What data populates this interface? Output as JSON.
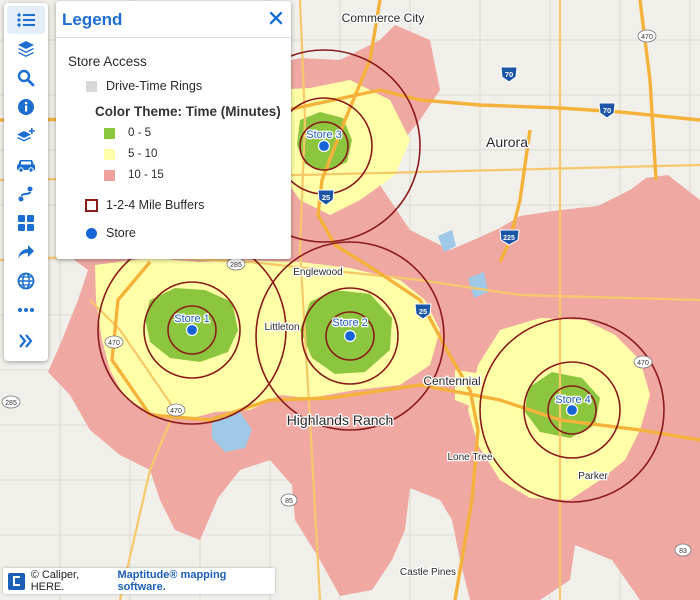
{
  "map": {
    "city_labels": [
      {
        "id": "commerce-city",
        "text": "Commerce City"
      },
      {
        "id": "aurora",
        "text": "Aurora"
      },
      {
        "id": "englewood",
        "text": "Englewood"
      },
      {
        "id": "littleton",
        "text": "Littleton"
      },
      {
        "id": "centennial",
        "text": "Centennial"
      },
      {
        "id": "highlands-ranch",
        "text": "Highlands Ranch"
      },
      {
        "id": "lone-tree",
        "text": "Lone Tree"
      },
      {
        "id": "parker",
        "text": "Parker"
      },
      {
        "id": "castle-pines",
        "text": "Castle Pines"
      }
    ],
    "highway_shields": [
      {
        "id": "i70-a",
        "text": "70",
        "kind": "interstate"
      },
      {
        "id": "i70-b",
        "text": "70",
        "kind": "interstate"
      },
      {
        "id": "i25-north",
        "text": "25",
        "kind": "interstate"
      },
      {
        "id": "i225",
        "text": "225",
        "kind": "interstate"
      },
      {
        "id": "i25-south",
        "text": "25",
        "kind": "interstate"
      },
      {
        "id": "sh470-ne",
        "text": "470",
        "kind": "state"
      },
      {
        "id": "sh470-w",
        "text": "470",
        "kind": "state"
      },
      {
        "id": "sh470-sw",
        "text": "470",
        "kind": "state"
      },
      {
        "id": "sh470-e",
        "text": "470",
        "kind": "state"
      },
      {
        "id": "sh285-a",
        "text": "285",
        "kind": "state"
      },
      {
        "id": "sh285-b",
        "text": "285",
        "kind": "state"
      },
      {
        "id": "sh85",
        "text": "85",
        "kind": "state"
      },
      {
        "id": "sh83",
        "text": "83",
        "kind": "state"
      }
    ],
    "stores": [
      {
        "id": "store-1",
        "label": "Store 1"
      },
      {
        "id": "store-2",
        "label": "Store 2"
      },
      {
        "id": "store-3",
        "label": "Store 3"
      },
      {
        "id": "store-4",
        "label": "Store 4"
      }
    ],
    "buffer_miles": [
      1,
      2,
      4
    ]
  },
  "toolbar": {
    "tools": [
      {
        "id": "legend",
        "icon": "list-icon",
        "active": true
      },
      {
        "id": "layers",
        "icon": "layers-icon",
        "active": false
      },
      {
        "id": "search",
        "icon": "search-icon",
        "active": false
      },
      {
        "id": "info",
        "icon": "info-icon",
        "active": false
      },
      {
        "id": "add-layer",
        "icon": "add-layer-icon",
        "active": false
      },
      {
        "id": "drive-time",
        "icon": "car-icon",
        "active": false
      },
      {
        "id": "route",
        "icon": "route-icon",
        "active": false
      },
      {
        "id": "apps",
        "icon": "grid-icon",
        "active": false
      },
      {
        "id": "share",
        "icon": "share-icon",
        "active": false
      },
      {
        "id": "basemap",
        "icon": "globe-icon",
        "active": false
      },
      {
        "id": "more",
        "icon": "more-icon",
        "active": false
      },
      {
        "id": "expand",
        "icon": "double-chevron-right-icon",
        "active": false
      }
    ]
  },
  "legend": {
    "title": "Legend",
    "group_title": "Store Access",
    "drive_time_label": "Drive-Time Rings",
    "theme_title": "Color Theme: Time (Minutes)",
    "bins": [
      {
        "label": "0 - 5",
        "color": "#8cc63f"
      },
      {
        "label": "5 - 10",
        "color": "#ffffa8"
      },
      {
        "label": "10 - 15",
        "color": "#f0a09a"
      }
    ],
    "buffers_label": "1-2-4 Mile Buffers",
    "store_label": "Store"
  },
  "colors": {
    "accent": "#1c6fd1",
    "zone_0_5": "#8cc63f",
    "zone_5_10": "#ffffa8",
    "zone_10_15": "#f0a09a",
    "buffer_ring": "#8b1a1a",
    "store_point": "#1565d8",
    "interstate_road": "#f4b23b",
    "major_road": "#f7c86a",
    "water": "#9fc9e6"
  },
  "attribution": {
    "prefix": "© Caliper, HERE.",
    "link_text": "Maptitude® mapping software."
  }
}
